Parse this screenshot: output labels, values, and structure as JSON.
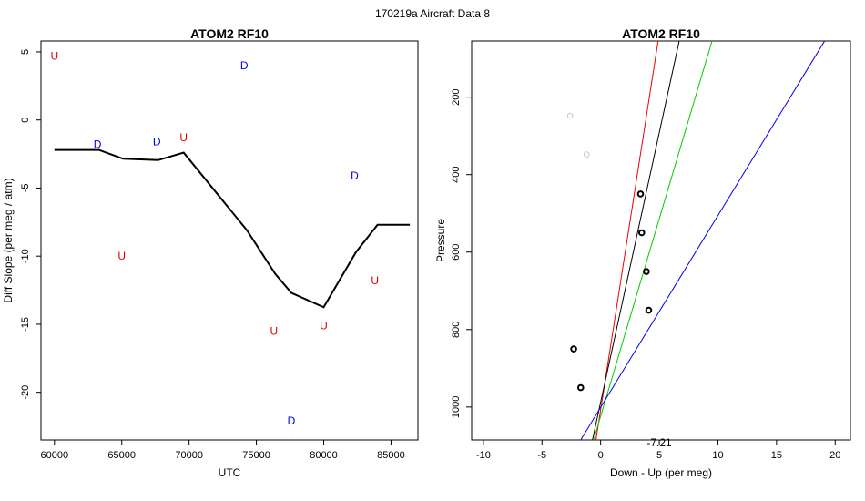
{
  "figure_title": "170219a   Aircraft Data 8",
  "chart_data": [
    {
      "type": "line",
      "title": "ATOM2 RF10",
      "xlabel": "UTC",
      "ylabel": "Diff Slope (per meg / atm)",
      "xlim": [
        59000,
        87000
      ],
      "ylim": [
        -23.5,
        5.8
      ],
      "xticks": [
        60000,
        65000,
        70000,
        75000,
        80000,
        85000
      ],
      "yticks": [
        5,
        0,
        -5,
        -10,
        -15,
        -20
      ],
      "line": {
        "x": [
          60000,
          63300,
          65100,
          67700,
          69600,
          74300,
          76400,
          77600,
          80000,
          82400,
          84000,
          86400
        ],
        "y": [
          -2.2,
          -2.2,
          -2.85,
          -2.95,
          -2.4,
          -8.1,
          -11.3,
          -12.7,
          -13.75,
          -9.7,
          -7.7,
          -7.7
        ],
        "color": "#000000"
      },
      "annotations": [
        {
          "x": 60000,
          "y": 4.7,
          "text": "U",
          "color": "#dd0000"
        },
        {
          "x": 74100,
          "y": 4.0,
          "text": "D",
          "color": "#0000dd"
        },
        {
          "x": 63200,
          "y": -1.8,
          "text": "D",
          "color": "#0000dd"
        },
        {
          "x": 67600,
          "y": -1.6,
          "text": "D",
          "color": "#0000dd"
        },
        {
          "x": 69600,
          "y": -1.3,
          "text": "U",
          "color": "#dd0000"
        },
        {
          "x": 82300,
          "y": -4.1,
          "text": "D",
          "color": "#0000dd"
        },
        {
          "x": 65000,
          "y": -10.0,
          "text": "U",
          "color": "#dd0000"
        },
        {
          "x": 83800,
          "y": -11.8,
          "text": "U",
          "color": "#dd0000"
        },
        {
          "x": 76300,
          "y": -15.5,
          "text": "U",
          "color": "#dd0000"
        },
        {
          "x": 80000,
          "y": -15.1,
          "text": "U",
          "color": "#dd0000"
        },
        {
          "x": 77600,
          "y": -22.1,
          "text": "D",
          "color": "#0000dd"
        }
      ]
    },
    {
      "type": "scatter",
      "title": "ATOM2 RF10",
      "xlabel": "Down - Up (per meg)",
      "ylabel": "Pressure",
      "xlim": [
        -11,
        21.3
      ],
      "ylim": [
        1085,
        55
      ],
      "y_reversed": true,
      "xticks": [
        -10,
        -5,
        0,
        5,
        10,
        15,
        20
      ],
      "yticks": [
        200,
        400,
        600,
        800,
        1000
      ],
      "points_black": [
        {
          "x": 3.4,
          "y": 450
        },
        {
          "x": 3.5,
          "y": 550
        },
        {
          "x": 3.9,
          "y": 650
        },
        {
          "x": 4.1,
          "y": 750
        },
        {
          "x": -2.3,
          "y": 850
        },
        {
          "x": -1.7,
          "y": 950
        }
      ],
      "points_gray": [
        {
          "x": -2.6,
          "y": 248
        },
        {
          "x": -1.2,
          "y": 348
        }
      ],
      "lines": [
        {
          "color": "#ee0000",
          "x1": -0.4,
          "y1": 1085,
          "x2": 4.9,
          "y2": 55
        },
        {
          "color": "#000000",
          "x1": -0.7,
          "y1": 1085,
          "x2": 6.7,
          "y2": 55
        },
        {
          "color": "#00cc00",
          "x1": -0.6,
          "y1": 1085,
          "x2": 9.5,
          "y2": 55
        },
        {
          "color": "#0000ee",
          "x1": -1.7,
          "y1": 1085,
          "x2": 19.1,
          "y2": 55
        }
      ],
      "annotation": {
        "text": "-7.21",
        "x": 5.0,
        "y": 1040
      }
    }
  ]
}
